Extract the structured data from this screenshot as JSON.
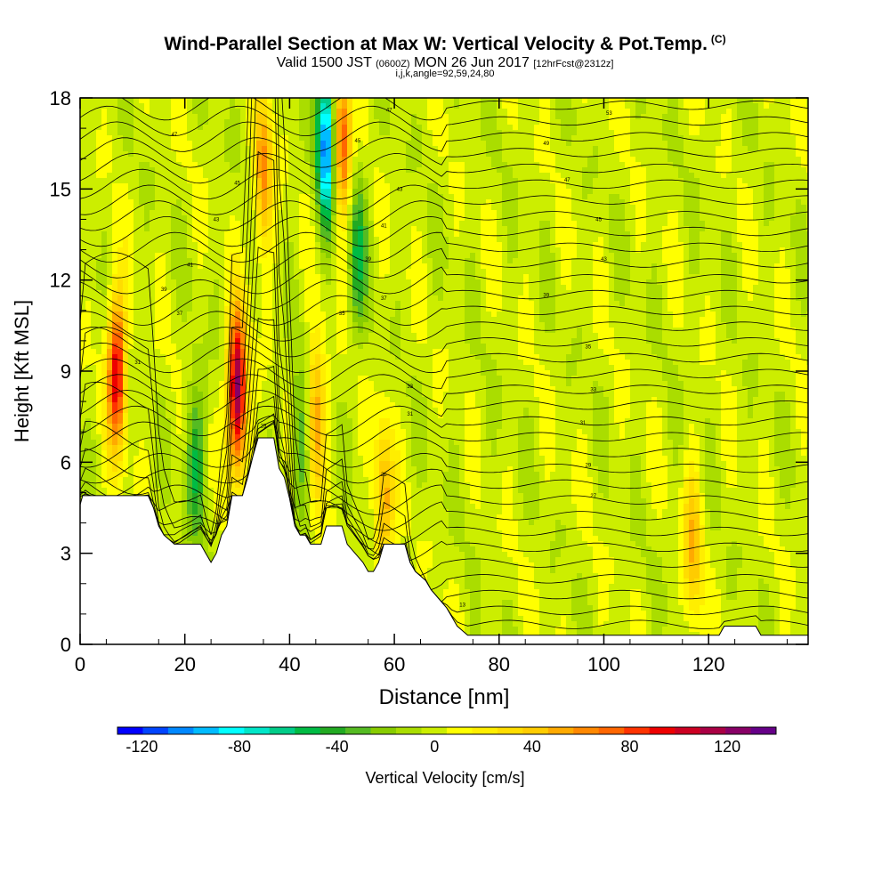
{
  "header": {
    "title": "Wind-Parallel Section at Max W: Vertical Velocity & Pot.Temp.",
    "title_tag": "(C)",
    "subtitle_pre": "Valid 1500 JST",
    "subtitle_utc": "(0600Z)",
    "subtitle_date": "MON 26 Jun 2017",
    "subtitle_fcst": "[12hrFcst@2312z]",
    "subline": "i,j,k,angle=92,59,24,80"
  },
  "chart_data": {
    "type": "heatmap",
    "title": "Wind-Parallel Section at Max W: Vertical Velocity & Pot.Temp.",
    "xlabel": "Distance [nm]",
    "ylabel": "Height [Kft MSL]",
    "xlim": [
      0,
      139
    ],
    "ylim": [
      0,
      18
    ],
    "x_ticks": [
      0,
      20,
      40,
      60,
      80,
      100,
      120
    ],
    "y_ticks": [
      0,
      3,
      6,
      9,
      12,
      15,
      18
    ],
    "colorbar": {
      "label": "Vertical Velocity [cm/s]",
      "ticks": [
        -120,
        -80,
        -40,
        0,
        40,
        80,
        120
      ],
      "range": [
        -130,
        140
      ],
      "colors": [
        "#0000ff",
        "#0044ff",
        "#0088ff",
        "#00bbff",
        "#00ffff",
        "#00e6c8",
        "#00cc88",
        "#00bb44",
        "#22aa22",
        "#55bb22",
        "#88cc00",
        "#aadd00",
        "#ccee00",
        "#ffff00",
        "#ffee00",
        "#ffdd00",
        "#ffcc00",
        "#ffaa00",
        "#ff8800",
        "#ff6600",
        "#ff3300",
        "#ee0000",
        "#cc0022",
        "#aa0044",
        "#880066",
        "#660088"
      ]
    },
    "terrain": [
      [
        0,
        4.6
      ],
      [
        0.5,
        4.9
      ],
      [
        2,
        4.9
      ],
      [
        3,
        4.9
      ],
      [
        11,
        4.9
      ],
      [
        13,
        4.9
      ],
      [
        14,
        4.5
      ],
      [
        15,
        3.9
      ],
      [
        16,
        3.6
      ],
      [
        18,
        3.3
      ],
      [
        20,
        3.3
      ],
      [
        23,
        3.3
      ],
      [
        24,
        3.0
      ],
      [
        25,
        2.7
      ],
      [
        26,
        3.0
      ],
      [
        27,
        3.6
      ],
      [
        28,
        3.9
      ],
      [
        29,
        4.9
      ],
      [
        31,
        4.9
      ],
      [
        32,
        5.5
      ],
      [
        33,
        6.2
      ],
      [
        34,
        6.8
      ],
      [
        36,
        6.8
      ],
      [
        37,
        6.8
      ],
      [
        38,
        5.8
      ],
      [
        39,
        5.5
      ],
      [
        40,
        4.8
      ],
      [
        41,
        3.9
      ],
      [
        42,
        3.6
      ],
      [
        43,
        3.6
      ],
      [
        44,
        3.3
      ],
      [
        46,
        3.3
      ],
      [
        47,
        3.9
      ],
      [
        48,
        3.9
      ],
      [
        50,
        3.9
      ],
      [
        51,
        3.3
      ],
      [
        54,
        2.7
      ],
      [
        55,
        2.4
      ],
      [
        56,
        2.4
      ],
      [
        57,
        2.7
      ],
      [
        58,
        3.3
      ],
      [
        59,
        3.3
      ],
      [
        62,
        3.3
      ],
      [
        63,
        2.7
      ],
      [
        64,
        2.4
      ],
      [
        66,
        2.1
      ],
      [
        67,
        1.8
      ],
      [
        70,
        1.2
      ],
      [
        71,
        0.9
      ],
      [
        72,
        0.6
      ],
      [
        74,
        0.3
      ],
      [
        122,
        0.3
      ],
      [
        123,
        0.6
      ],
      [
        129,
        0.6
      ],
      [
        130,
        0.3
      ],
      [
        139,
        0.3
      ]
    ],
    "updraft_cores": [
      {
        "x": 7,
        "z": 9.0,
        "w": 100
      },
      {
        "x": 30,
        "z": 8.3,
        "w": 130
      },
      {
        "x": 58,
        "z": 4.6,
        "w": 55
      },
      {
        "x": 117,
        "z": 3.2,
        "w": 45
      },
      {
        "x": 35,
        "z": 15.5,
        "w": 60
      },
      {
        "x": 50,
        "z": 16.5,
        "w": 80
      },
      {
        "x": 45,
        "z": 7.5,
        "w": 60
      }
    ],
    "downdraft_cores": [
      {
        "x": 47,
        "z": 16.5,
        "w": -110
      },
      {
        "x": 22,
        "z": 6.0,
        "w": -45
      },
      {
        "x": 42,
        "z": 6.5,
        "w": -40
      },
      {
        "x": 53,
        "z": 13.0,
        "w": -45
      }
    ],
    "contour_labels": [
      {
        "x": 18,
        "z": 16.8,
        "text": "47"
      },
      {
        "x": 30,
        "z": 15.2,
        "text": "45"
      },
      {
        "x": 26,
        "z": 14.0,
        "text": "43"
      },
      {
        "x": 21,
        "z": 12.5,
        "text": "41"
      },
      {
        "x": 16,
        "z": 11.7,
        "text": "39"
      },
      {
        "x": 19,
        "z": 10.9,
        "text": "37"
      },
      {
        "x": 11,
        "z": 9.3,
        "text": "31"
      },
      {
        "x": 35,
        "z": 7.2,
        "text": "23"
      },
      {
        "x": 59,
        "z": 17.6,
        "text": "47"
      },
      {
        "x": 53,
        "z": 16.6,
        "text": "45"
      },
      {
        "x": 61,
        "z": 15.0,
        "text": "43"
      },
      {
        "x": 58,
        "z": 13.8,
        "text": "41"
      },
      {
        "x": 55,
        "z": 12.7,
        "text": "39"
      },
      {
        "x": 58,
        "z": 11.4,
        "text": "37"
      },
      {
        "x": 50,
        "z": 10.9,
        "text": "35"
      },
      {
        "x": 63,
        "z": 8.5,
        "text": "33"
      },
      {
        "x": 63,
        "z": 7.6,
        "text": "31"
      },
      {
        "x": 58,
        "z": 5.6,
        "text": "25"
      },
      {
        "x": 73,
        "z": 1.3,
        "text": "13"
      },
      {
        "x": 101,
        "z": 17.5,
        "text": "53"
      },
      {
        "x": 89,
        "z": 16.5,
        "text": "49"
      },
      {
        "x": 93,
        "z": 15.3,
        "text": "47"
      },
      {
        "x": 99,
        "z": 14.0,
        "text": "45"
      },
      {
        "x": 100,
        "z": 12.7,
        "text": "43"
      },
      {
        "x": 89,
        "z": 11.5,
        "text": "39"
      },
      {
        "x": 97,
        "z": 9.8,
        "text": "35"
      },
      {
        "x": 98,
        "z": 8.4,
        "text": "33"
      },
      {
        "x": 96,
        "z": 7.3,
        "text": "31"
      },
      {
        "x": 97,
        "z": 5.9,
        "text": "29"
      },
      {
        "x": 98,
        "z": 4.9,
        "text": "27"
      }
    ]
  }
}
